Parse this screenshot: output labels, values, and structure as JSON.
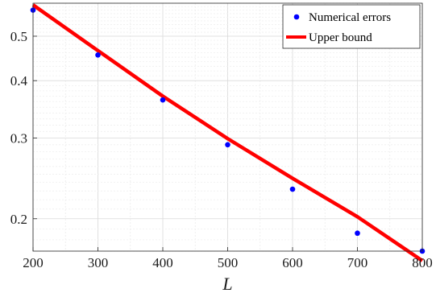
{
  "chart_data": {
    "type": "line",
    "title": "",
    "xlabel": "L",
    "ylabel": "",
    "xlim": [
      200,
      800
    ],
    "ylim": [
      0.17,
      0.59
    ],
    "yscale": "log",
    "grid": true,
    "legend_position": "top-right",
    "x_ticks": [
      200,
      300,
      400,
      500,
      600,
      700,
      800
    ],
    "x_tick_labels": [
      "200",
      "300",
      "400",
      "500",
      "600",
      "700",
      "800"
    ],
    "y_ticks": [
      0.2,
      0.3,
      0.4,
      0.5
    ],
    "y_tick_labels": [
      "0.2",
      "0.3",
      "0.4",
      "0.5"
    ],
    "series": [
      {
        "name": "Numerical errors",
        "kind": "scatter",
        "color": "#0000ff",
        "x": [
          200,
          300,
          400,
          500,
          600,
          700,
          800
        ],
        "y": [
          0.57,
          0.455,
          0.363,
          0.29,
          0.232,
          0.186,
          0.17
        ]
      },
      {
        "name": "Upper bound",
        "kind": "line",
        "color": "#ff0000",
        "x": [
          200,
          300,
          400,
          500,
          600,
          700,
          800
        ],
        "y": [
          0.585,
          0.465,
          0.37,
          0.299,
          0.245,
          0.202,
          0.162
        ]
      }
    ]
  }
}
